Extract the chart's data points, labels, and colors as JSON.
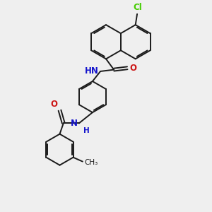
{
  "bg_color": "#efefef",
  "bond_color": "#1a1a1a",
  "N_color": "#1414cc",
  "O_color": "#cc1414",
  "Cl_color": "#44cc00",
  "bond_width": 1.4,
  "figsize": [
    3.0,
    3.0
  ],
  "dpi": 100,
  "xlim": [
    0,
    10
  ],
  "ylim": [
    0,
    10
  ]
}
